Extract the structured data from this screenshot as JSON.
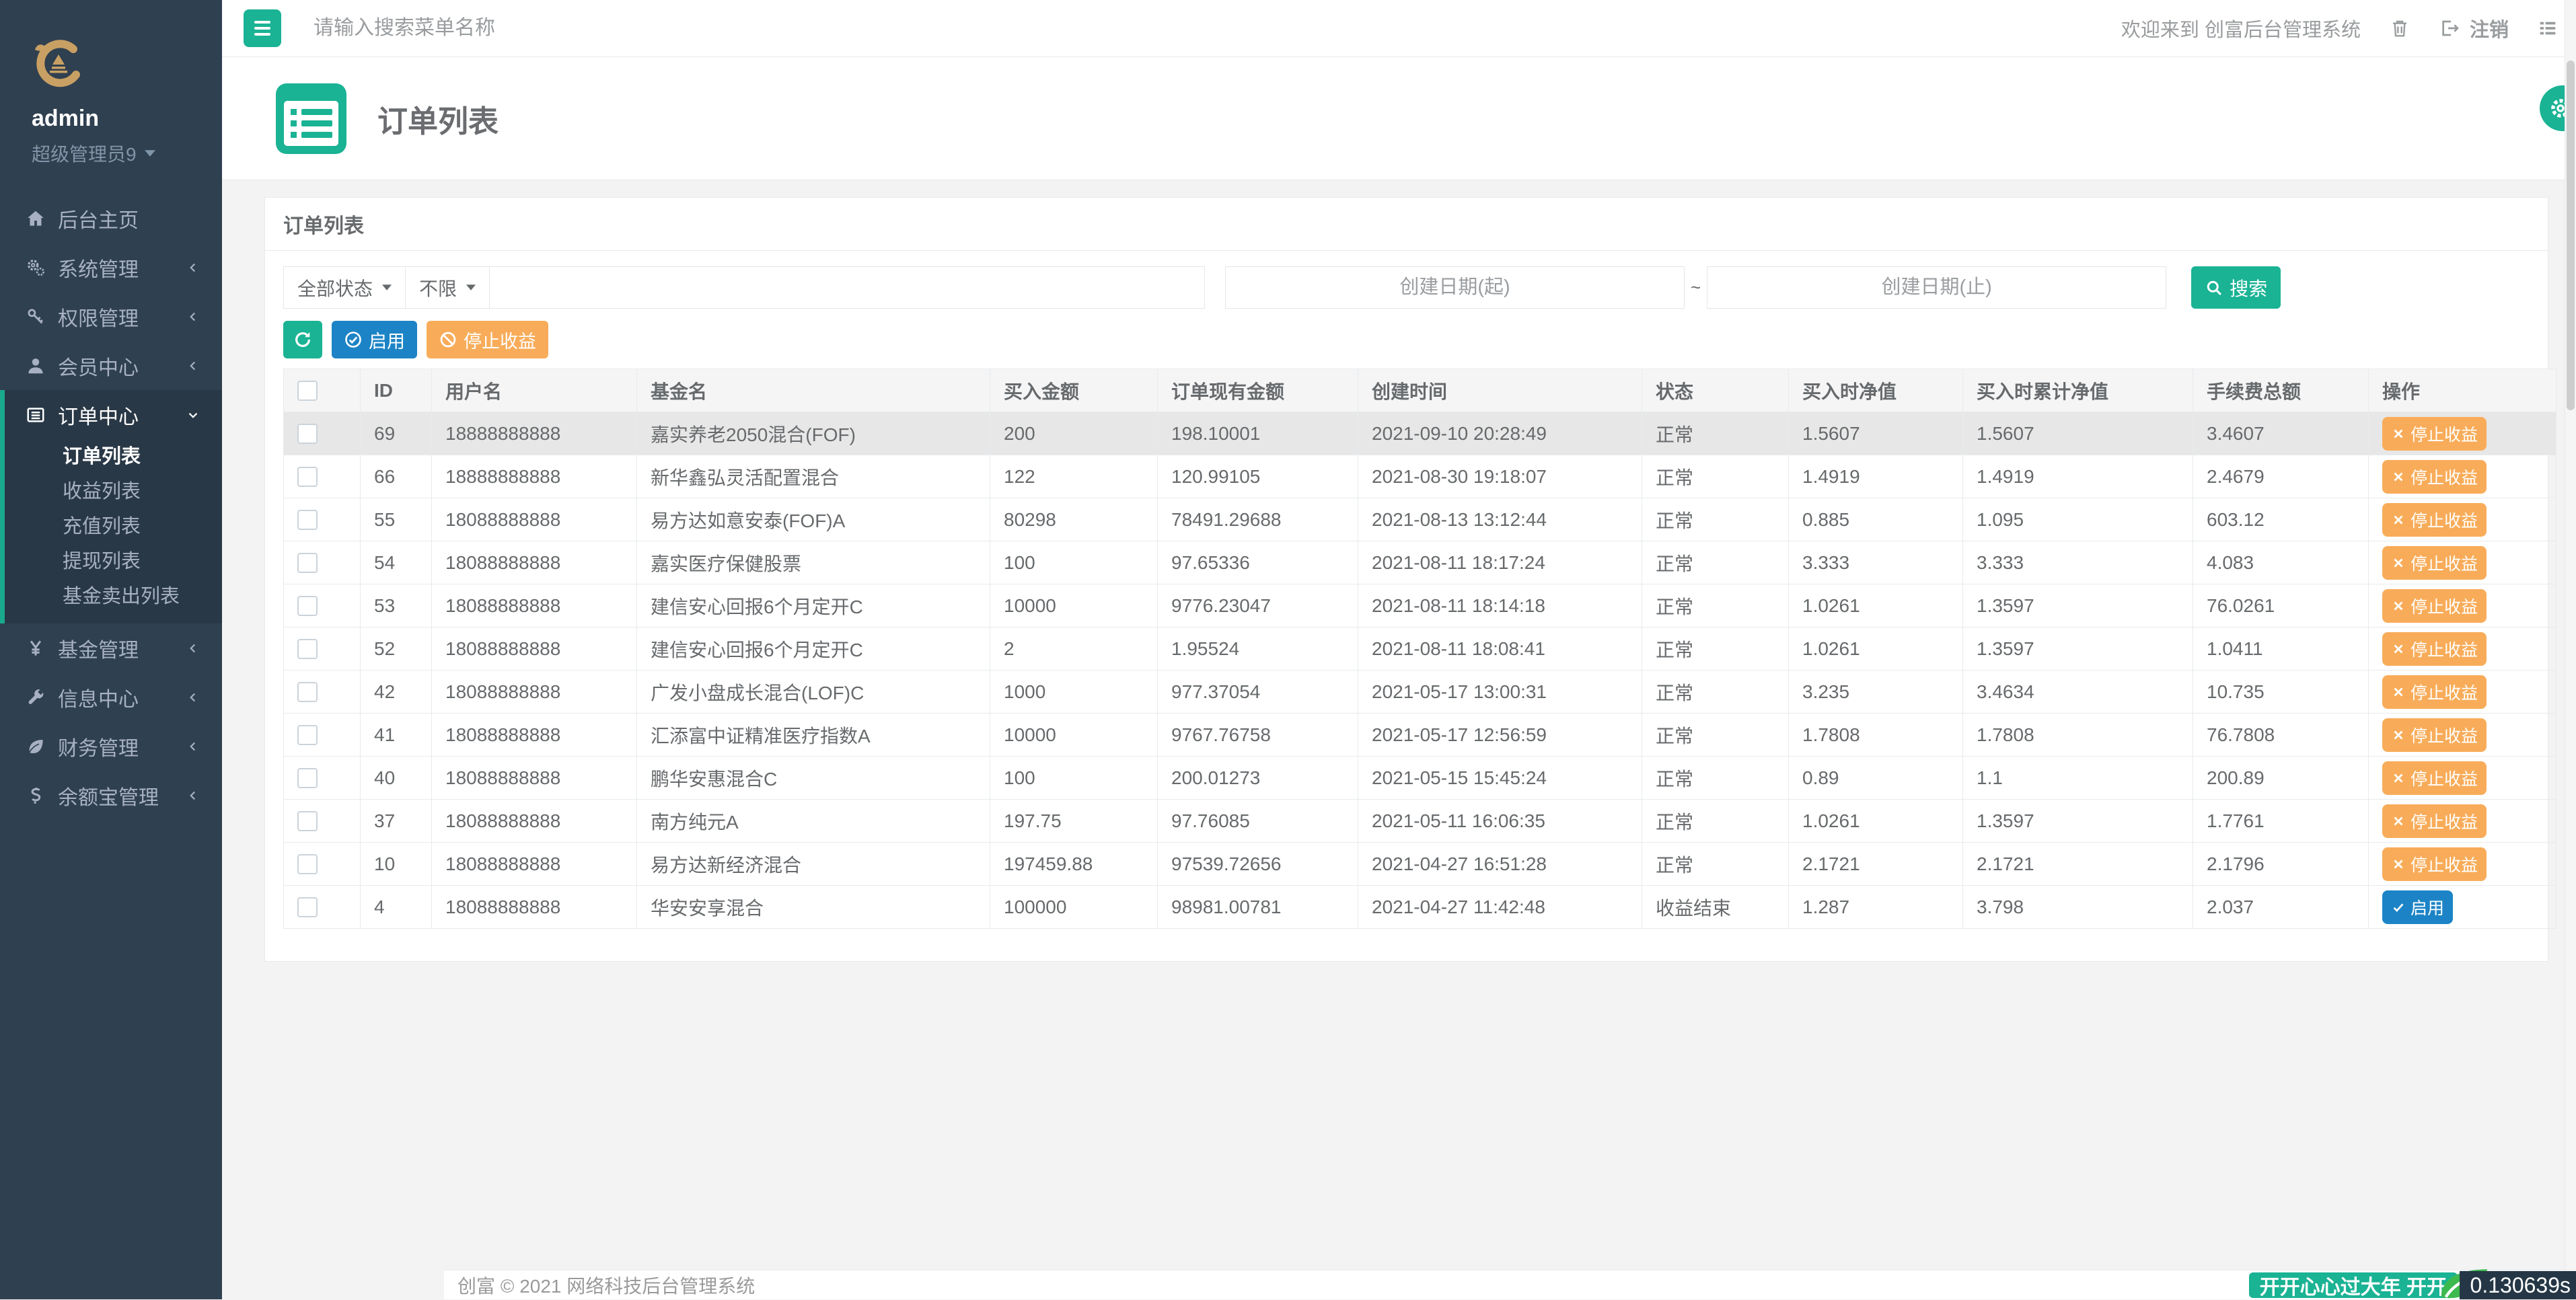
{
  "sidebar": {
    "user": {
      "name": "admin",
      "role": "超级管理员9"
    },
    "items": [
      {
        "key": "home",
        "label": "后台主页",
        "icon": "home-icon",
        "expandable": false
      },
      {
        "key": "system",
        "label": "系统管理",
        "icon": "cogs-icon",
        "expandable": true
      },
      {
        "key": "permission",
        "label": "权限管理",
        "icon": "key-icon",
        "expandable": true
      },
      {
        "key": "member",
        "label": "会员中心",
        "icon": "user-icon",
        "expandable": true
      },
      {
        "key": "order",
        "label": "订单中心",
        "icon": "list-icon",
        "expandable": true,
        "expanded": true,
        "active": true,
        "children": [
          {
            "key": "order-list",
            "label": "订单列表",
            "active": true
          },
          {
            "key": "profit-list",
            "label": "收益列表"
          },
          {
            "key": "recharge-list",
            "label": "充值列表"
          },
          {
            "key": "withdraw-list",
            "label": "提现列表"
          },
          {
            "key": "fund-sell-list",
            "label": "基金卖出列表"
          }
        ]
      },
      {
        "key": "fund",
        "label": "基金管理",
        "icon": "yen-icon",
        "expandable": true
      },
      {
        "key": "info",
        "label": "信息中心",
        "icon": "wrench-icon",
        "expandable": true
      },
      {
        "key": "finance",
        "label": "财务管理",
        "icon": "leaf-icon",
        "expandable": true
      },
      {
        "key": "yuebao",
        "label": "余额宝管理",
        "icon": "yuebao-icon",
        "expandable": true
      }
    ]
  },
  "topbar": {
    "search_placeholder": "请输入搜索菜单名称",
    "welcome": "欢迎来到 创富后台管理系统",
    "logout_label": "注销"
  },
  "page": {
    "title": "订单列表"
  },
  "panel": {
    "title": "订单列表",
    "filters": {
      "status_dropdown": "全部状态",
      "limit_dropdown": "不限",
      "date_start_placeholder": "创建日期(起)",
      "date_separator": "~",
      "date_end_placeholder": "创建日期(止)",
      "search_label": "搜索"
    },
    "toolbar": {
      "enable_label": "启用",
      "stop_profit_label": "停止收益"
    }
  },
  "table": {
    "columns": [
      "ID",
      "用户名",
      "基金名",
      "买入金额",
      "订单现有金额",
      "创建时间",
      "状态",
      "买入时净值",
      "买入时累计净值",
      "手续费总额",
      "操作"
    ],
    "action_stop": "停止收益",
    "action_enable": "启用",
    "rows": [
      {
        "id": "69",
        "username": "18888888888",
        "fund": "嘉实养老2050混合(FOF)",
        "buy_amount": "200",
        "current_amount": "198.10001",
        "created": "2021-09-10 20:28:49",
        "status": "正常",
        "buy_nav": "1.5607",
        "buy_acc_nav": "1.5607",
        "fee_total": "3.4607",
        "action": "stop",
        "highlighted": true
      },
      {
        "id": "66",
        "username": "18888888888",
        "fund": "新华鑫弘灵活配置混合",
        "buy_amount": "122",
        "current_amount": "120.99105",
        "created": "2021-08-30 19:18:07",
        "status": "正常",
        "buy_nav": "1.4919",
        "buy_acc_nav": "1.4919",
        "fee_total": "2.4679",
        "action": "stop"
      },
      {
        "id": "55",
        "username": "18088888888",
        "fund": "易方达如意安泰(FOF)A",
        "buy_amount": "80298",
        "current_amount": "78491.29688",
        "created": "2021-08-13 13:12:44",
        "status": "正常",
        "buy_nav": "0.885",
        "buy_acc_nav": "1.095",
        "fee_total": "603.12",
        "action": "stop"
      },
      {
        "id": "54",
        "username": "18088888888",
        "fund": "嘉实医疗保健股票",
        "buy_amount": "100",
        "current_amount": "97.65336",
        "created": "2021-08-11 18:17:24",
        "status": "正常",
        "buy_nav": "3.333",
        "buy_acc_nav": "3.333",
        "fee_total": "4.083",
        "action": "stop"
      },
      {
        "id": "53",
        "username": "18088888888",
        "fund": "建信安心回报6个月定开C",
        "buy_amount": "10000",
        "current_amount": "9776.23047",
        "created": "2021-08-11 18:14:18",
        "status": "正常",
        "buy_nav": "1.0261",
        "buy_acc_nav": "1.3597",
        "fee_total": "76.0261",
        "action": "stop"
      },
      {
        "id": "52",
        "username": "18088888888",
        "fund": "建信安心回报6个月定开C",
        "buy_amount": "2",
        "current_amount": "1.95524",
        "created": "2021-08-11 18:08:41",
        "status": "正常",
        "buy_nav": "1.0261",
        "buy_acc_nav": "1.3597",
        "fee_total": "1.0411",
        "action": "stop"
      },
      {
        "id": "42",
        "username": "18088888888",
        "fund": "广发小盘成长混合(LOF)C",
        "buy_amount": "1000",
        "current_amount": "977.37054",
        "created": "2021-05-17 13:00:31",
        "status": "正常",
        "buy_nav": "3.235",
        "buy_acc_nav": "3.4634",
        "fee_total": "10.735",
        "action": "stop"
      },
      {
        "id": "41",
        "username": "18088888888",
        "fund": "汇添富中证精准医疗指数A",
        "buy_amount": "10000",
        "current_amount": "9767.76758",
        "created": "2021-05-17 12:56:59",
        "status": "正常",
        "buy_nav": "1.7808",
        "buy_acc_nav": "1.7808",
        "fee_total": "76.7808",
        "action": "stop"
      },
      {
        "id": "40",
        "username": "18088888888",
        "fund": "鹏华安惠混合C",
        "buy_amount": "100",
        "current_amount": "200.01273",
        "created": "2021-05-15 15:45:24",
        "status": "正常",
        "buy_nav": "0.89",
        "buy_acc_nav": "1.1",
        "fee_total": "200.89",
        "action": "stop"
      },
      {
        "id": "37",
        "username": "18088888888",
        "fund": "南方纯元A",
        "buy_amount": "197.75",
        "current_amount": "97.76085",
        "created": "2021-05-11 16:06:35",
        "status": "正常",
        "buy_nav": "1.0261",
        "buy_acc_nav": "1.3597",
        "fee_total": "1.7761",
        "action": "stop"
      },
      {
        "id": "10",
        "username": "18088888888",
        "fund": "易方达新经济混合",
        "buy_amount": "197459.88",
        "current_amount": "97539.72656",
        "created": "2021-04-27 16:51:28",
        "status": "正常",
        "buy_nav": "2.1721",
        "buy_acc_nav": "2.1721",
        "fee_total": "2.1796",
        "action": "stop"
      },
      {
        "id": "4",
        "username": "18088888888",
        "fund": "华安安享混合",
        "buy_amount": "100000",
        "current_amount": "98981.00781",
        "created": "2021-04-27 11:42:48",
        "status": "收益结束",
        "buy_nav": "1.287",
        "buy_acc_nav": "3.798",
        "fee_total": "2.037",
        "action": "enable"
      }
    ]
  },
  "footer": {
    "copyright": "创富 © 2021 网络科技后台管理系统"
  },
  "badges": {
    "promo": "开开心心过大年 开开",
    "timer": "0.130639s"
  },
  "colors": {
    "accent": "#1ab394",
    "sidebar": "#2f4050",
    "sidebar_active_bg": "#293846",
    "active_border": "#19aa8d",
    "blue": "#1c84c6",
    "orange": "#f8ac59",
    "dark_badge": "#253746"
  }
}
